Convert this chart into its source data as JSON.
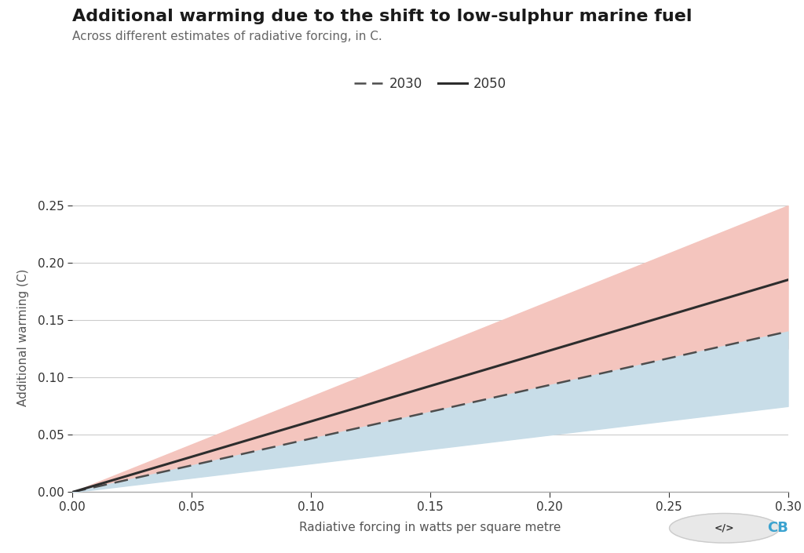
{
  "title": "Additional warming due to the shift to low-sulphur marine fuel",
  "subtitle": "Across different estimates of radiative forcing, in C.",
  "xlabel": "Radiative forcing in watts per square metre",
  "ylabel": "Additional warming (C)",
  "background_color": "#ffffff",
  "x_min": 0,
  "x_max": 0.3,
  "y_min": 0,
  "y_max": 0.27,
  "x_ticks": [
    0,
    0.05,
    0.1,
    0.15,
    0.2,
    0.25,
    0.3
  ],
  "y_ticks": [
    0,
    0.05,
    0.1,
    0.15,
    0.2,
    0.25
  ],
  "line_2050_mean_slope": 0.617,
  "line_2050_p5_slope": 0.417,
  "line_2050_p95_slope": 0.833,
  "line_2030_mean_slope": 0.467,
  "line_2030_p5_slope": 0.25,
  "line_2030_p95_slope": 0.467,
  "color_2050_line": "#2d2d2d",
  "color_2050_band": "#f4c5be",
  "color_2030_line": "#4d4d4d",
  "color_2030_band": "#c8dde8",
  "color_grid": "#cccccc",
  "color_axis": "#aaaaaa",
  "title_fontsize": 16,
  "subtitle_fontsize": 11,
  "label_fontsize": 11,
  "tick_fontsize": 11,
  "legend_fontsize": 12
}
